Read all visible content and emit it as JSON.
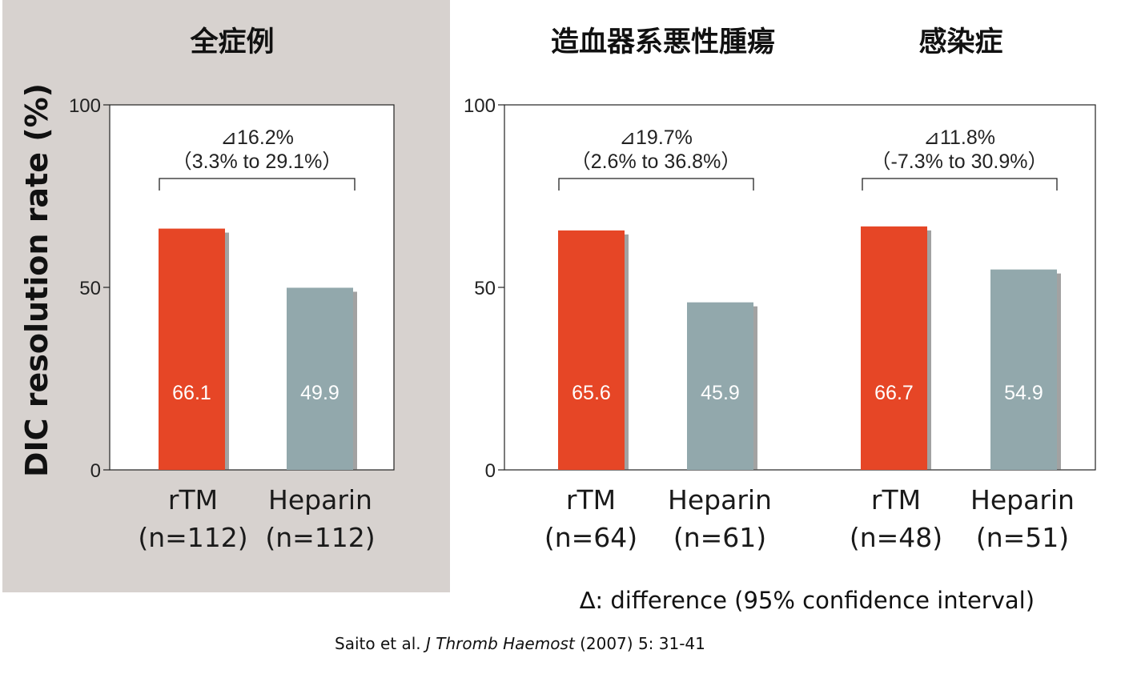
{
  "panels": {
    "all": {
      "title": "全症例"
    },
    "hem": {
      "title": "造血器系悪性腫瘍"
    },
    "inf": {
      "title": "感染症"
    }
  },
  "y_axis_label": "DIC resolution rate (%)",
  "colors": {
    "rtm": "#e64626",
    "heparin": "#92a8ac",
    "left_bg": "#d7d2cf"
  },
  "chart_data": [
    {
      "type": "bar",
      "title": "全症例",
      "categories": [
        "rTM",
        "Heparin"
      ],
      "category_sublabels": [
        "(n=112)",
        "(n=112)"
      ],
      "values": [
        66.1,
        49.9
      ],
      "value_labels": [
        "66.1",
        "49.9"
      ],
      "ylim": [
        0,
        100
      ],
      "yticks": [
        "0",
        "50",
        "100"
      ],
      "annotation": {
        "diff": "⊿16.2%",
        "ci": "（3.3% to 29.1%）"
      }
    },
    {
      "type": "bar",
      "title": "造血器系悪性腫瘍",
      "categories": [
        "rTM",
        "Heparin"
      ],
      "category_sublabels": [
        "(n=64)",
        "(n=61)"
      ],
      "values": [
        65.6,
        45.9
      ],
      "value_labels": [
        "65.6",
        "45.9"
      ],
      "ylim": [
        0,
        100
      ],
      "yticks": [
        "0",
        "50",
        "100"
      ],
      "annotation": {
        "diff": "⊿19.7%",
        "ci": "（2.6% to 36.8%）"
      }
    },
    {
      "type": "bar",
      "title": "感染症",
      "categories": [
        "rTM",
        "Heparin"
      ],
      "category_sublabels": [
        "(n=48)",
        "(n=51)"
      ],
      "values": [
        66.7,
        54.9
      ],
      "value_labels": [
        "66.7",
        "54.9"
      ],
      "ylim": [
        0,
        100
      ],
      "yticks": [
        "0",
        "50",
        "100"
      ],
      "annotation": {
        "diff": "⊿11.8%",
        "ci": "（-7.3% to 30.9%）"
      }
    }
  ],
  "legend_note": "∆: difference   (95% confidence interval)",
  "citation": {
    "authors": "Saito et al.",
    "journal": "J Thromb Haemost",
    "details": "(2007) 5: 31-41"
  }
}
